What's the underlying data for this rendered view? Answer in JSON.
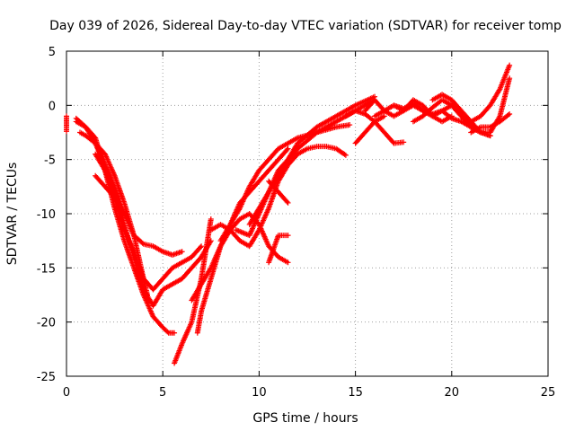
{
  "chart_data": {
    "type": "scatter",
    "title": "Day 039 of 2026, Sidereal Day-to-day VTEC variation (SDTVAR) for receiver tomp",
    "xlabel": "GPS time / hours",
    "ylabel": "SDTVAR / TECUs",
    "xlim": [
      0,
      25
    ],
    "ylim": [
      -25,
      5
    ],
    "xticks": [
      0,
      5,
      10,
      15,
      20,
      25
    ],
    "yticks": [
      -25,
      -20,
      -15,
      -10,
      -5,
      0,
      5
    ],
    "grid": true,
    "marker": "+",
    "color": "#ff0000",
    "series": [
      {
        "x": [
          0.0,
          0.0,
          0.0
        ],
        "y": [
          -1.0,
          -1.7,
          -2.4
        ]
      },
      {
        "x": [
          0.5,
          1.0,
          1.5,
          2.0,
          2.5,
          3.0,
          3.5,
          4.0,
          4.5,
          5.0,
          5.3,
          5.6
        ],
        "y": [
          -1.2,
          -2.0,
          -3.0,
          -6.0,
          -9.5,
          -12.5,
          -15.0,
          -17.5,
          -19.5,
          -20.5,
          -21.0,
          -21.0
        ]
      },
      {
        "x": [
          0.5,
          1.0,
          1.5,
          2.0,
          2.5,
          3.0,
          3.5,
          4.0,
          4.5,
          5.0,
          5.5,
          6.0
        ],
        "y": [
          -1.5,
          -2.0,
          -3.5,
          -5.5,
          -7.5,
          -10.0,
          -12.0,
          -12.8,
          -13.0,
          -13.5,
          -13.8,
          -13.5
        ]
      },
      {
        "x": [
          0.7,
          1.0,
          1.5,
          2.0,
          2.5,
          3.0,
          3.5,
          4.0,
          4.2
        ],
        "y": [
          -2.5,
          -2.8,
          -3.5,
          -4.5,
          -6.5,
          -9.0,
          -12.0,
          -16.0,
          -17.5
        ]
      },
      {
        "x": [
          1.5,
          2.0,
          2.5,
          3.0,
          3.5,
          4.0,
          4.5,
          5.0,
          6.0,
          7.0,
          7.5
        ],
        "y": [
          -3.5,
          -5.5,
          -8.0,
          -11.0,
          -14.0,
          -17.0,
          -18.5,
          -17.0,
          -16.0,
          -14.0,
          -12.5
        ]
      },
      {
        "x": [
          1.5,
          2.0,
          2.5,
          3.0,
          3.5,
          4.0,
          4.5,
          5.0,
          5.5,
          6.0,
          6.5,
          7.0
        ],
        "y": [
          -4.5,
          -6.0,
          -8.5,
          -11.5,
          -13.5,
          -16.0,
          -17.0,
          -16.0,
          -15.0,
          -14.5,
          -14.0,
          -13.0
        ]
      },
      {
        "x": [
          1.5,
          2.0,
          2.5,
          2.8
        ],
        "y": [
          -6.5,
          -7.5,
          -8.5,
          -9.5
        ]
      },
      {
        "x": [
          5.6,
          6.0,
          6.5,
          7.0,
          7.5
        ],
        "y": [
          -23.8,
          -22.0,
          -20.0,
          -16.0,
          -10.5
        ]
      },
      {
        "x": [
          6.5,
          7.0,
          7.5,
          8.0,
          8.5,
          9.0,
          9.5,
          10.0,
          10.5,
          11.0,
          11.5
        ],
        "y": [
          -18.0,
          -16.5,
          -15.0,
          -13.0,
          -11.5,
          -10.5,
          -10.0,
          -11.0,
          -13.0,
          -14.0,
          -14.5
        ]
      },
      {
        "x": [
          6.8,
          7.0,
          7.5,
          8.0,
          8.5,
          9.0,
          9.5,
          10.0,
          10.5,
          11.0,
          11.5
        ],
        "y": [
          -21.0,
          -19.0,
          -16.0,
          -13.0,
          -11.0,
          -9.0,
          -8.0,
          -7.0,
          -6.0,
          -5.0,
          -4.0
        ]
      },
      {
        "x": [
          7.5,
          8.0,
          8.5,
          9.0,
          9.5,
          10.0,
          10.5,
          11.0,
          11.5,
          12.0,
          12.5,
          13.0,
          13.5,
          14.0,
          14.5
        ],
        "y": [
          -11.5,
          -11.0,
          -11.5,
          -12.5,
          -13.0,
          -11.5,
          -9.5,
          -7.0,
          -5.5,
          -4.5,
          -4.0,
          -3.8,
          -3.8,
          -4.0,
          -4.6
        ]
      },
      {
        "x": [
          8.0,
          8.5,
          9.0,
          9.5,
          10.0,
          10.5,
          11.0,
          11.5,
          12.0,
          13.0,
          14.0,
          14.7
        ],
        "y": [
          -12.5,
          -11.0,
          -9.5,
          -7.5,
          -6.0,
          -5.0,
          -4.0,
          -3.5,
          -3.0,
          -2.5,
          -2.0,
          -1.8
        ]
      },
      {
        "x": [
          8.8,
          9.5,
          10.0,
          10.5,
          11.0,
          11.5,
          12.0,
          13.0,
          14.0,
          15.0,
          16.0
        ],
        "y": [
          -11.5,
          -12.0,
          -10.0,
          -8.0,
          -6.0,
          -5.0,
          -4.0,
          -2.5,
          -1.5,
          -0.5,
          0.5
        ]
      },
      {
        "x": [
          9.5,
          10.0,
          10.5,
          11.0,
          11.5,
          12.0,
          13.0,
          14.0,
          15.0,
          16.0
        ],
        "y": [
          -11.0,
          -9.5,
          -8.0,
          -6.5,
          -5.0,
          -3.5,
          -2.0,
          -1.0,
          0.0,
          0.8
        ]
      },
      {
        "x": [
          10.5,
          11.0,
          11.5
        ],
        "y": [
          -14.5,
          -12.0,
          -12.0
        ]
      },
      {
        "x": [
          10.5,
          11.0,
          11.5
        ],
        "y": [
          -7.0,
          -8.0,
          -9.0
        ]
      },
      {
        "x": [
          14.5,
          15.0,
          15.5,
          16.0,
          16.5,
          17.0,
          17.5
        ],
        "y": [
          -1.0,
          -0.5,
          -0.8,
          -1.5,
          -2.5,
          -3.5,
          -3.4
        ]
      },
      {
        "x": [
          15.0,
          15.5,
          16.0,
          16.5
        ],
        "y": [
          -3.5,
          -2.5,
          -1.5,
          -1.0
        ]
      },
      {
        "x": [
          15.5,
          16.0,
          16.5,
          17.0,
          17.5,
          18.0,
          18.5,
          19.0,
          19.5,
          20.0
        ],
        "y": [
          -0.5,
          0.5,
          -0.5,
          -1.0,
          -0.5,
          0.0,
          -0.5,
          -1.0,
          -1.5,
          -1.0
        ]
      },
      {
        "x": [
          16.0,
          16.5,
          17.0,
          17.5,
          18.0,
          18.5,
          19.0,
          19.5,
          20.0,
          20.5,
          21.0
        ],
        "y": [
          -1.0,
          -0.5,
          0.0,
          -0.5,
          0.5,
          0.0,
          -1.0,
          -0.5,
          0.0,
          -1.0,
          -2.0
        ]
      },
      {
        "x": [
          17.0,
          17.5,
          18.0,
          18.5,
          19.0,
          19.5,
          20.0,
          20.5,
          21.0,
          21.5,
          22.0
        ],
        "y": [
          0.0,
          -0.3,
          0.2,
          -0.5,
          -0.8,
          -0.5,
          -1.2,
          -1.5,
          -2.0,
          -2.5,
          -2.8
        ]
      },
      {
        "x": [
          18.0,
          18.5,
          19.0,
          19.5,
          20.0,
          20.5,
          21.0,
          21.5,
          22.0
        ],
        "y": [
          -1.5,
          -1.0,
          -0.2,
          0.5,
          0.0,
          -1.0,
          -2.0,
          -2.5,
          -2.8
        ]
      },
      {
        "x": [
          19.0,
          19.5,
          20.0,
          20.5,
          21.0,
          21.5,
          22.0,
          22.5,
          23.0
        ],
        "y": [
          0.5,
          1.0,
          0.5,
          -0.5,
          -1.5,
          -2.5,
          -2.5,
          -1.0,
          2.5
        ]
      },
      {
        "x": [
          21.0,
          21.5,
          22.0,
          22.5,
          23.0
        ],
        "y": [
          -1.5,
          -1.0,
          0.0,
          1.5,
          3.7
        ]
      },
      {
        "x": [
          21.0,
          21.5,
          22.0,
          22.5,
          23.0
        ],
        "y": [
          -2.5,
          -2.0,
          -2.0,
          -1.5,
          -0.8
        ]
      }
    ]
  }
}
